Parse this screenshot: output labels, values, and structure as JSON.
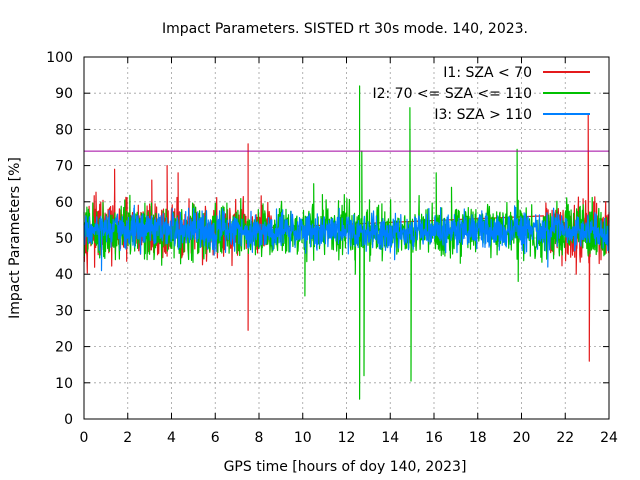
{
  "chart_data": {
    "type": "line",
    "title": "Impact Parameters. SISTED rt 30s mode. 140, 2023.",
    "xlabel": "GPS time [hours of doy 140, 2023]",
    "ylabel": "Impact Parameters [%]",
    "xlim": [
      0,
      24
    ],
    "ylim": [
      0,
      100
    ],
    "x_ticks": [
      0,
      2,
      4,
      6,
      8,
      10,
      12,
      14,
      16,
      18,
      20,
      22,
      24
    ],
    "y_ticks": [
      0,
      10,
      20,
      30,
      40,
      50,
      60,
      70,
      80,
      90,
      100
    ],
    "grid": true,
    "legend_position": "top-right",
    "threshold_line": {
      "value": 74,
      "color": "#a000a0"
    },
    "series": [
      {
        "name": "I1: SZA < 70",
        "color": "#e41a1c",
        "active_hours": [
          [
            0,
            8.6
          ],
          [
            21,
            24
          ]
        ],
        "base": 52,
        "noise": 5,
        "spikes": [
          {
            "x": 1.4,
            "y": 69
          },
          {
            "x": 3.1,
            "y": 66
          },
          {
            "x": 3.8,
            "y": 70
          },
          {
            "x": 4.3,
            "y": 68
          },
          {
            "x": 7.5,
            "y": 76
          },
          {
            "x": 7.5,
            "y": 24.5
          },
          {
            "x": 22.5,
            "y": 40
          },
          {
            "x": 23.05,
            "y": 84
          },
          {
            "x": 23.1,
            "y": 16
          },
          {
            "x": 23.3,
            "y": 60
          }
        ]
      },
      {
        "name": "I2: 70 <= SZA <= 110",
        "color": "#00c000",
        "active_hours": [
          [
            0,
            24
          ]
        ],
        "base": 52,
        "noise": 4.5,
        "spikes": [
          {
            "x": 10.1,
            "y": 34
          },
          {
            "x": 10.5,
            "y": 65
          },
          {
            "x": 10.9,
            "y": 62
          },
          {
            "x": 11.9,
            "y": 62
          },
          {
            "x": 12.4,
            "y": 40
          },
          {
            "x": 12.6,
            "y": 92
          },
          {
            "x": 12.6,
            "y": 5.5
          },
          {
            "x": 12.7,
            "y": 74
          },
          {
            "x": 12.8,
            "y": 12
          },
          {
            "x": 14.9,
            "y": 86
          },
          {
            "x": 14.95,
            "y": 10.5
          },
          {
            "x": 16.1,
            "y": 68
          },
          {
            "x": 16.8,
            "y": 64
          },
          {
            "x": 17.2,
            "y": 43
          },
          {
            "x": 19.8,
            "y": 74.5
          },
          {
            "x": 19.85,
            "y": 38
          },
          {
            "x": 20.4,
            "y": 45
          }
        ]
      },
      {
        "name": "I3: SZA > 110",
        "color": "#0080ff",
        "active_hours": [
          [
            0,
            24
          ]
        ],
        "base": 52,
        "noise": 3.2,
        "spikes": [
          {
            "x": 0.8,
            "y": 41
          },
          {
            "x": 2.3,
            "y": 59
          },
          {
            "x": 8.8,
            "y": 58
          },
          {
            "x": 14.2,
            "y": 44
          },
          {
            "x": 21.2,
            "y": 42
          }
        ]
      }
    ]
  }
}
